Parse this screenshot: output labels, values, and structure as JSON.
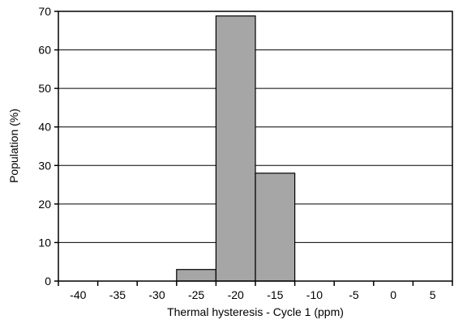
{
  "chart_data": {
    "type": "bar",
    "title": "",
    "xlabel": "Thermal hysteresis - Cycle 1 (ppm)",
    "ylabel": "Population (%)",
    "categories": [
      "-40",
      "-35",
      "-30",
      "-25",
      "-20",
      "-15",
      "-10",
      "-5",
      "0",
      "5"
    ],
    "values": [
      0,
      0,
      0,
      3,
      68.8,
      28,
      0,
      0,
      0,
      0
    ],
    "ylim": [
      0,
      70
    ],
    "yticks": [
      0,
      10,
      20,
      30,
      40,
      50,
      60,
      70
    ],
    "ytick_labels": [
      "0",
      "10",
      "20",
      "30",
      "40",
      "50",
      "60",
      "70"
    ],
    "grid": true,
    "legend": "none",
    "bar_color": "#a6a6a6"
  }
}
